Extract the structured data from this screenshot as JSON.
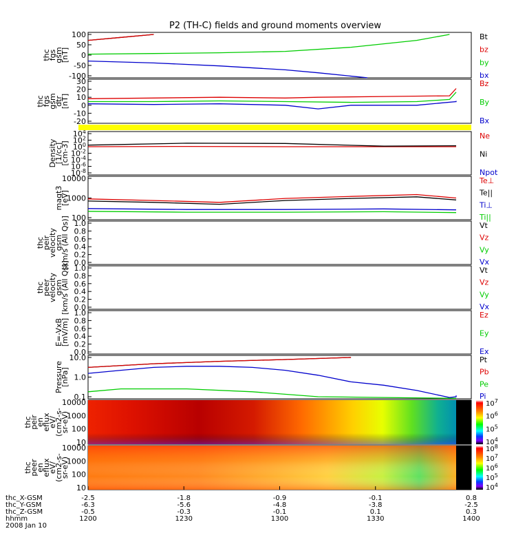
{
  "title": "P2 (TH-C) fields and ground moments overview",
  "chart_data": {
    "type": "line",
    "title": "P2 (TH-C) fields and ground moments overview",
    "xaxis": {
      "ticks": [
        {
          "t": 0,
          "label": "1200"
        },
        {
          "t": 30,
          "label": "1230"
        },
        {
          "t": 60,
          "label": "1300"
        },
        {
          "t": 90,
          "label": "1330"
        },
        {
          "t": 120,
          "label": "1400"
        }
      ],
      "range_minutes": [
        0,
        120
      ],
      "rows": [
        {
          "label": "thc_X-GSM",
          "values": [
            "-2.5",
            "-1.8",
            "-0.9",
            "-0.1",
            "0.8"
          ]
        },
        {
          "label": "thc_Y-GSM",
          "values": [
            "-6.3",
            "-5.6",
            "-4.8",
            "-3.8",
            "-2.5"
          ]
        },
        {
          "label": "thc_Z-GSM",
          "values": [
            "-0.5",
            "-0.3",
            "-0.1",
            "0.1",
            "0.3"
          ]
        },
        {
          "label": "hhmm",
          "values": [
            "1200",
            "1230",
            "1300",
            "1330",
            "1400"
          ]
        }
      ],
      "date": "2008 Jan 10"
    },
    "panels": [
      {
        "ylabel": [
          "thc",
          "fgs",
          "gsm",
          "[nT]"
        ],
        "ylim": [
          -100,
          110
        ],
        "yticks": [
          "100",
          "50",
          "0",
          "-50",
          "-100"
        ],
        "series": [
          {
            "name": "Bt",
            "color": "#000000",
            "x": [
              0,
              10,
              20
            ],
            "y": [
              80,
              95,
              110
            ]
          },
          {
            "name": "bz",
            "color": "#dd0000",
            "x": [
              0,
              10,
              20
            ],
            "y": [
              80,
              95,
              110
            ]
          },
          {
            "name": "by",
            "color": "#00cc00",
            "x": [
              0,
              20,
              40,
              60,
              80,
              100,
              110
            ],
            "y": [
              10,
              13,
              17,
              24,
              45,
              80,
              110
            ]
          },
          {
            "name": "bx",
            "color": "#0000cc",
            "x": [
              0,
              20,
              40,
              60,
              70,
              85
            ],
            "y": [
              -25,
              -35,
              -50,
              -70,
              -85,
              -110
            ]
          }
        ]
      },
      {
        "ylabel": [
          "thc",
          "fgs",
          "gsm",
          "dtr",
          "[nT]"
        ],
        "ylim": [
          -25,
          30
        ],
        "yticks": [
          "30",
          "20",
          "10",
          "0",
          "-10",
          "-20"
        ],
        "series": [
          {
            "name": "Bz",
            "color": "#dd0000",
            "x": [
              0,
              20,
              40,
              60,
              70,
              90,
              110,
              120
            ],
            "y": [
              6,
              7,
              8,
              7,
              8,
              9,
              10,
              20
            ]
          },
          {
            "name": "By",
            "color": "#00cc00",
            "x": [
              0,
              20,
              40,
              60,
              80,
              100,
              110,
              120
            ],
            "y": [
              2,
              2,
              3,
              2,
              1,
              2,
              5,
              15
            ]
          },
          {
            "name": "Bx",
            "color": "#0000cc",
            "x": [
              0,
              20,
              40,
              60,
              70,
              80,
              100,
              115,
              120
            ],
            "y": [
              -1,
              -2,
              -1,
              -3,
              -8,
              -3,
              -3,
              2,
              3
            ]
          }
        ]
      },
      {
        "ylabel": [
          "Density",
          "[1/cc]",
          "[cm-3]"
        ],
        "ylim": [
          1e-08,
          10000.0
        ],
        "yticks": [
          "10^4",
          "10^2",
          "10^0",
          "10^-2",
          "10^-4",
          "10^-6",
          "10^-8"
        ],
        "log": true,
        "series": [
          {
            "name": "Ne",
            "color": "#dd0000",
            "x": [
              0,
              30,
              60,
              90,
              120
            ],
            "y": [
              1.0,
              1.2,
              1.0,
              1.0,
              1.0
            ]
          },
          {
            "name": "Ni",
            "color": "#000000",
            "x": [
              0,
              30,
              60,
              90,
              120
            ],
            "y": [
              3,
              12,
              10,
              1.5,
              2
            ]
          },
          {
            "name": "Npot",
            "color": "#0000cc",
            "x": [],
            "y": []
          }
        ]
      },
      {
        "ylabel": [
          "magt3",
          "[eV]"
        ],
        "ylim": [
          100,
          10000
        ],
        "yticks": [
          "10000",
          "1000",
          "100"
        ],
        "log": true,
        "series": [
          {
            "name": "Te⊥",
            "color": "#dd0000",
            "x": [
              0,
              20,
              40,
              60,
              80,
              100,
              120
            ],
            "y": [
              900,
              750,
              600,
              950,
              1200,
              1500,
              1000
            ]
          },
          {
            "name": "Te||",
            "color": "#000000",
            "x": [
              0,
              20,
              40,
              60,
              80,
              100,
              120
            ],
            "y": [
              700,
              600,
              480,
              750,
              950,
              1150,
              800
            ]
          },
          {
            "name": "Ti⊥",
            "color": "#0000cc",
            "x": [
              0,
              30,
              60,
              90,
              120
            ],
            "y": [
              290,
              260,
              260,
              280,
              250
            ]
          },
          {
            "name": "Ti||",
            "color": "#00cc00",
            "x": [
              0,
              30,
              60,
              90,
              120
            ],
            "y": [
              210,
              190,
              190,
              200,
              180
            ]
          }
        ]
      },
      {
        "ylabel": [
          "thc",
          "peir",
          "velocity",
          "gsm",
          "[km/s (All Qs)]"
        ],
        "ylim": [
          0,
          1
        ],
        "yticks": [
          "1.0",
          "0.8",
          "0.6",
          "0.4",
          "0.2",
          "0.0"
        ],
        "series": [
          {
            "name": "Vt",
            "color": "#000000",
            "x": [],
            "y": []
          },
          {
            "name": "Vz",
            "color": "#dd0000",
            "x": [],
            "y": []
          },
          {
            "name": "Vy",
            "color": "#00cc00",
            "x": [],
            "y": []
          },
          {
            "name": "Vx",
            "color": "#0000cc",
            "x": [],
            "y": []
          }
        ]
      },
      {
        "ylabel": [
          "thc",
          "peer",
          "velocity",
          "gsm",
          "[km/s (All Qs)]"
        ],
        "ylim": [
          0,
          1
        ],
        "yticks": [
          "1.0",
          "0.8",
          "0.6",
          "0.4",
          "0.2",
          "0.0"
        ],
        "series": [
          {
            "name": "Vt",
            "color": "#000000",
            "x": [],
            "y": []
          },
          {
            "name": "Vz",
            "color": "#dd0000",
            "x": [],
            "y": []
          },
          {
            "name": "Vy",
            "color": "#00cc00",
            "x": [],
            "y": []
          },
          {
            "name": "Vx",
            "color": "#0000cc",
            "x": [],
            "y": []
          }
        ]
      },
      {
        "ylabel": [
          "E=-VxB",
          "[mV/m]"
        ],
        "ylim": [
          0,
          1
        ],
        "yticks": [
          "1.0",
          "0.8",
          "0.6",
          "0.4",
          "0.2",
          "0.0"
        ],
        "series": [
          {
            "name": "Ez",
            "color": "#dd0000",
            "x": [],
            "y": []
          },
          {
            "name": "Ey",
            "color": "#00cc00",
            "x": [],
            "y": []
          },
          {
            "name": "Ex",
            "color": "#0000cc",
            "x": [],
            "y": []
          }
        ]
      },
      {
        "ylabel": [
          "Pressure",
          "[nPa]"
        ],
        "ylim": [
          0.05,
          12
        ],
        "yticks": [
          "10.0",
          "1.0",
          "0.1"
        ],
        "log": true,
        "series": [
          {
            "name": "Pt",
            "color": "#000000",
            "x": [
              0,
              20,
              40,
              60,
              80
            ],
            "y": [
              3,
              5,
              7,
              9,
              12
            ]
          },
          {
            "name": "Pb",
            "color": "#dd0000",
            "x": [
              0,
              20,
              40,
              60,
              80
            ],
            "y": [
              3,
              5,
              7,
              9,
              12
            ]
          },
          {
            "name": "Pe",
            "color": "#00cc00",
            "x": [
              0,
              10,
              30,
              50,
              70,
              90,
              120
            ],
            "y": [
              0.1,
              0.15,
              0.15,
              0.1,
              0.05,
              0.045,
              0.04
            ]
          },
          {
            "name": "Pi",
            "color": "#0000cc",
            "x": [
              0,
              10,
              20,
              30,
              40,
              50,
              60,
              70,
              80,
              90,
              100,
              110,
              115,
              120
            ],
            "y": [
              1.3,
              2.0,
              3.0,
              3.5,
              3.5,
              3.0,
              2.0,
              1.0,
              0.4,
              0.25,
              0.12,
              0.045,
              0.05,
              0.06
            ]
          }
        ]
      },
      {
        "ylabel": [
          "thc",
          "peir",
          "en",
          "eflux",
          "eV/",
          "(cm^2-s-",
          "sr-eV)"
        ],
        "type": "heatmap",
        "yticks": [
          "10000",
          "1000",
          "100",
          "10"
        ],
        "colorbar": [
          "10^7",
          "10^6",
          "10^5",
          "10^4"
        ]
      },
      {
        "ylabel": [
          "thc",
          "peer",
          "en",
          "eflux",
          "eV/",
          "(cm^2-s-",
          "sr-eV)"
        ],
        "type": "heatmap",
        "yticks": [
          "10000",
          "1000",
          "100",
          "10"
        ],
        "colorbar": [
          "10^8",
          "10^7",
          "10^6",
          "10^5",
          "10^4"
        ]
      }
    ]
  }
}
